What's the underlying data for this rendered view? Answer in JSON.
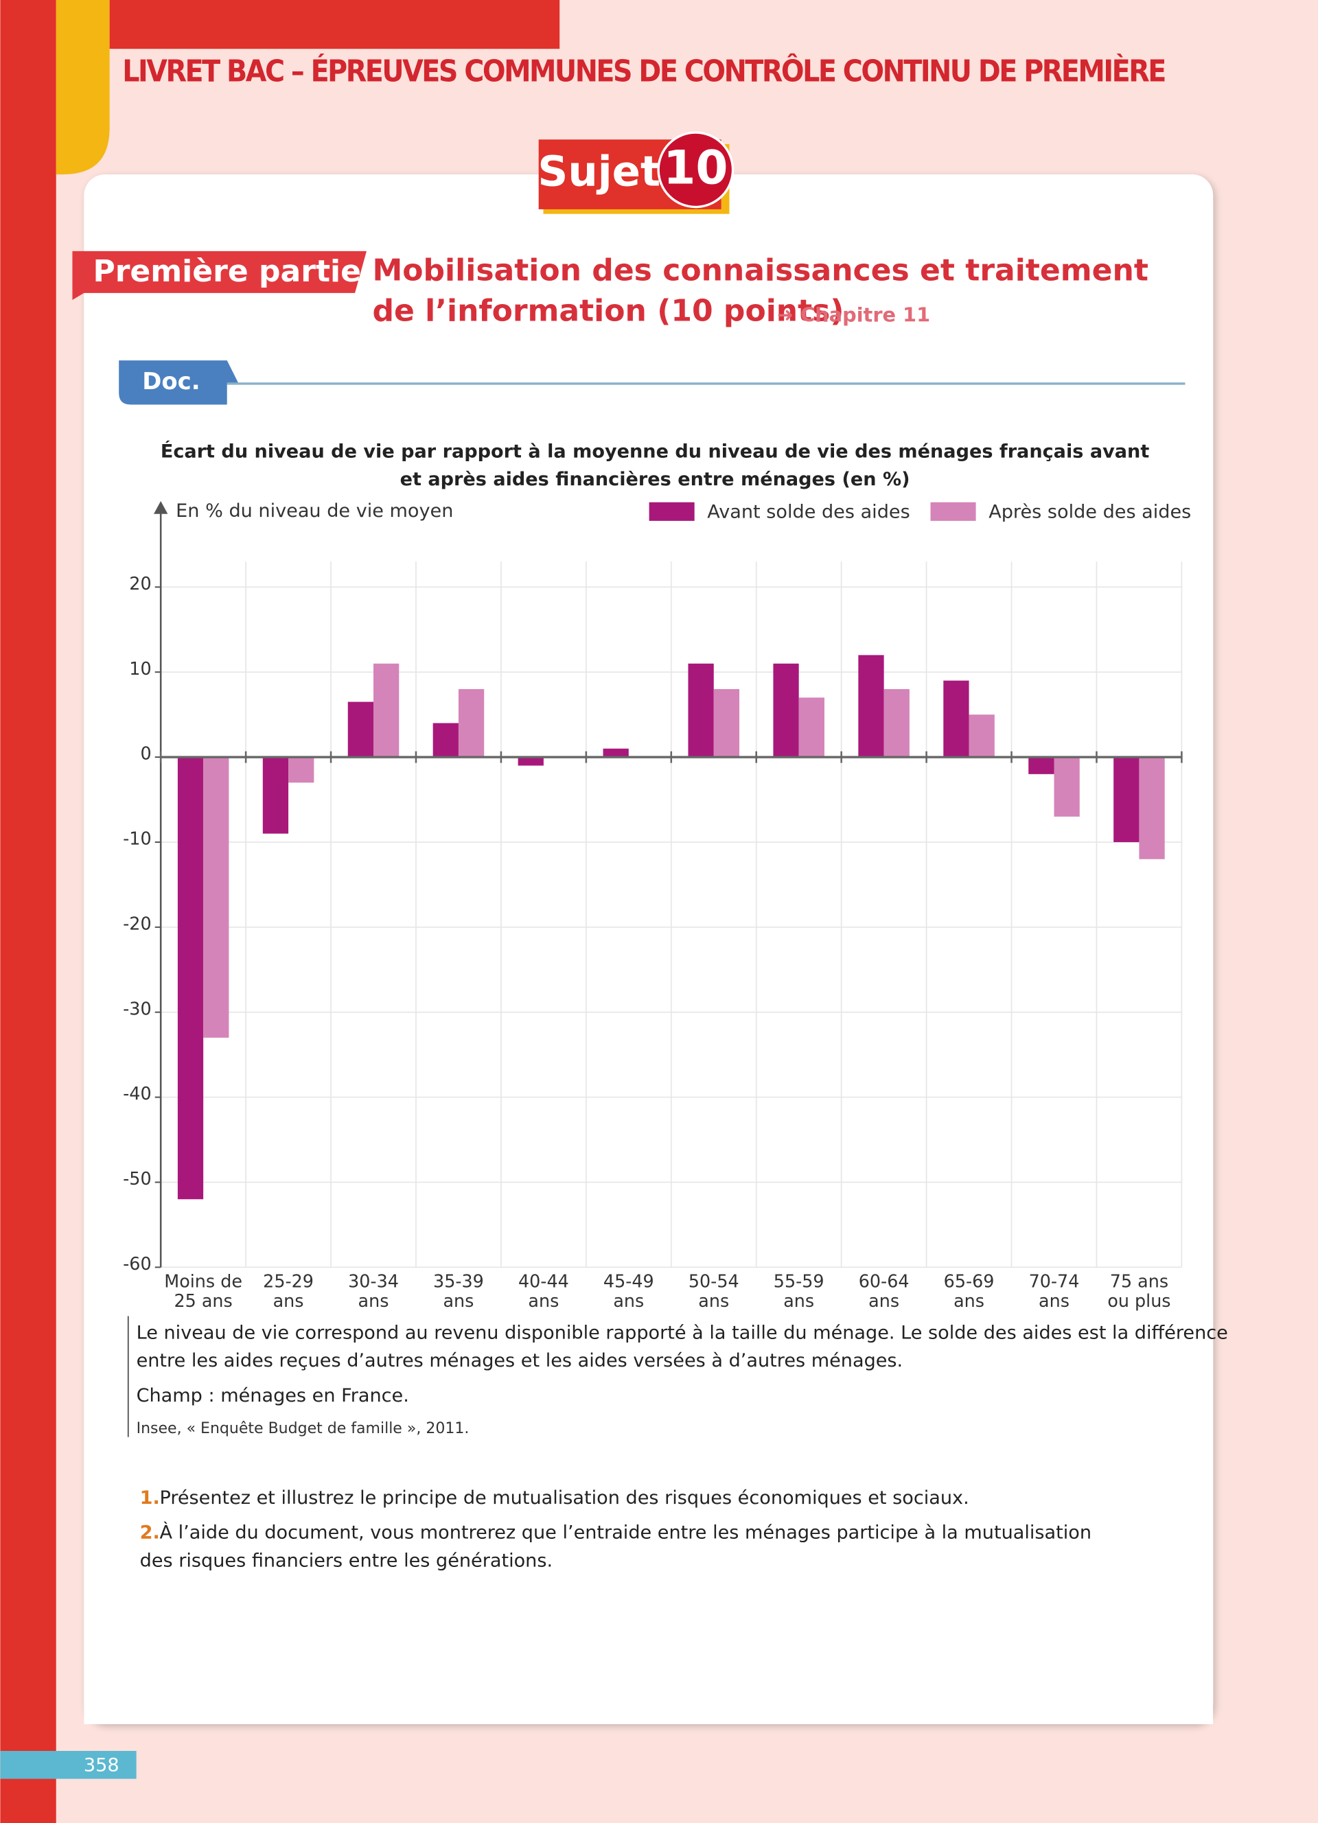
{
  "header": {
    "title": "LIVRET BAC – ÉPREUVES COMMUNES DE CONTRÔLE CONTINU DE PREMIÈRE",
    "subject_label": "Sujet",
    "subject_number": "10"
  },
  "section": {
    "label": "Première partie",
    "title_lines": [
      "Mobilisation des connaissances et traitement",
      "de l’information (10 points)"
    ],
    "chapter": "➜ Chapitre 11"
  },
  "doc_label": "Doc.",
  "chart_data": {
    "type": "bar",
    "title": [
      "Écart du niveau de vie par rapport à la moyenne du niveau de vie des ménages français avant",
      "et après aides financières entre ménages (en %)"
    ],
    "y_label": "En % du niveau de vie moyen",
    "categories": [
      [
        "Moins de",
        "25 ans"
      ],
      [
        "25-29",
        "ans"
      ],
      [
        "30-34",
        "ans"
      ],
      [
        "35-39",
        "ans"
      ],
      [
        "40-44",
        "ans"
      ],
      [
        "45-49",
        "ans"
      ],
      [
        "50-54",
        "ans"
      ],
      [
        "55-59",
        "ans"
      ],
      [
        "60-64",
        "ans"
      ],
      [
        "65-69",
        "ans"
      ],
      [
        "70-74",
        "ans"
      ],
      [
        "75 ans",
        "ou plus"
      ]
    ],
    "series": [
      {
        "name": "Avant solde des aides",
        "color": "#a8187a",
        "values": [
          -52,
          -9,
          6.5,
          4,
          -1,
          1,
          11,
          11,
          12,
          9,
          -2,
          -10
        ]
      },
      {
        "name": "Après solde des aides",
        "color": "#d484b8",
        "values": [
          -33,
          -3,
          11,
          8,
          0,
          0,
          8,
          7,
          8,
          5,
          -7,
          -12
        ]
      }
    ],
    "ylim": [
      -60,
      23
    ],
    "yticks": [
      -60,
      -50,
      -40,
      -30,
      -20,
      -10,
      0,
      10,
      20
    ],
    "grid": true,
    "legend": "top-right"
  },
  "notes": [
    "Le niveau de vie correspond au revenu disponible rapporté à la taille du ménage. Le solde des aides est la différence",
    "entre les aides reçues d’autres ménages et les aides versées à d’autres ménages."
  ],
  "field": "Champ : ménages en France.",
  "source": "Insee, « Enquête Budget de famille », 2011.",
  "questions": [
    {
      "number": "1.",
      "lines": [
        "Présentez et illustrez le principe de mutualisation des risques économiques et sociaux."
      ]
    },
    {
      "number": "2.",
      "lines": [
        "À l’aide du document, vous montrerez que l’entraide entre les ménages participe à la mutualisation",
        "des risques financiers entre les générations."
      ]
    }
  ],
  "page_number": "358"
}
